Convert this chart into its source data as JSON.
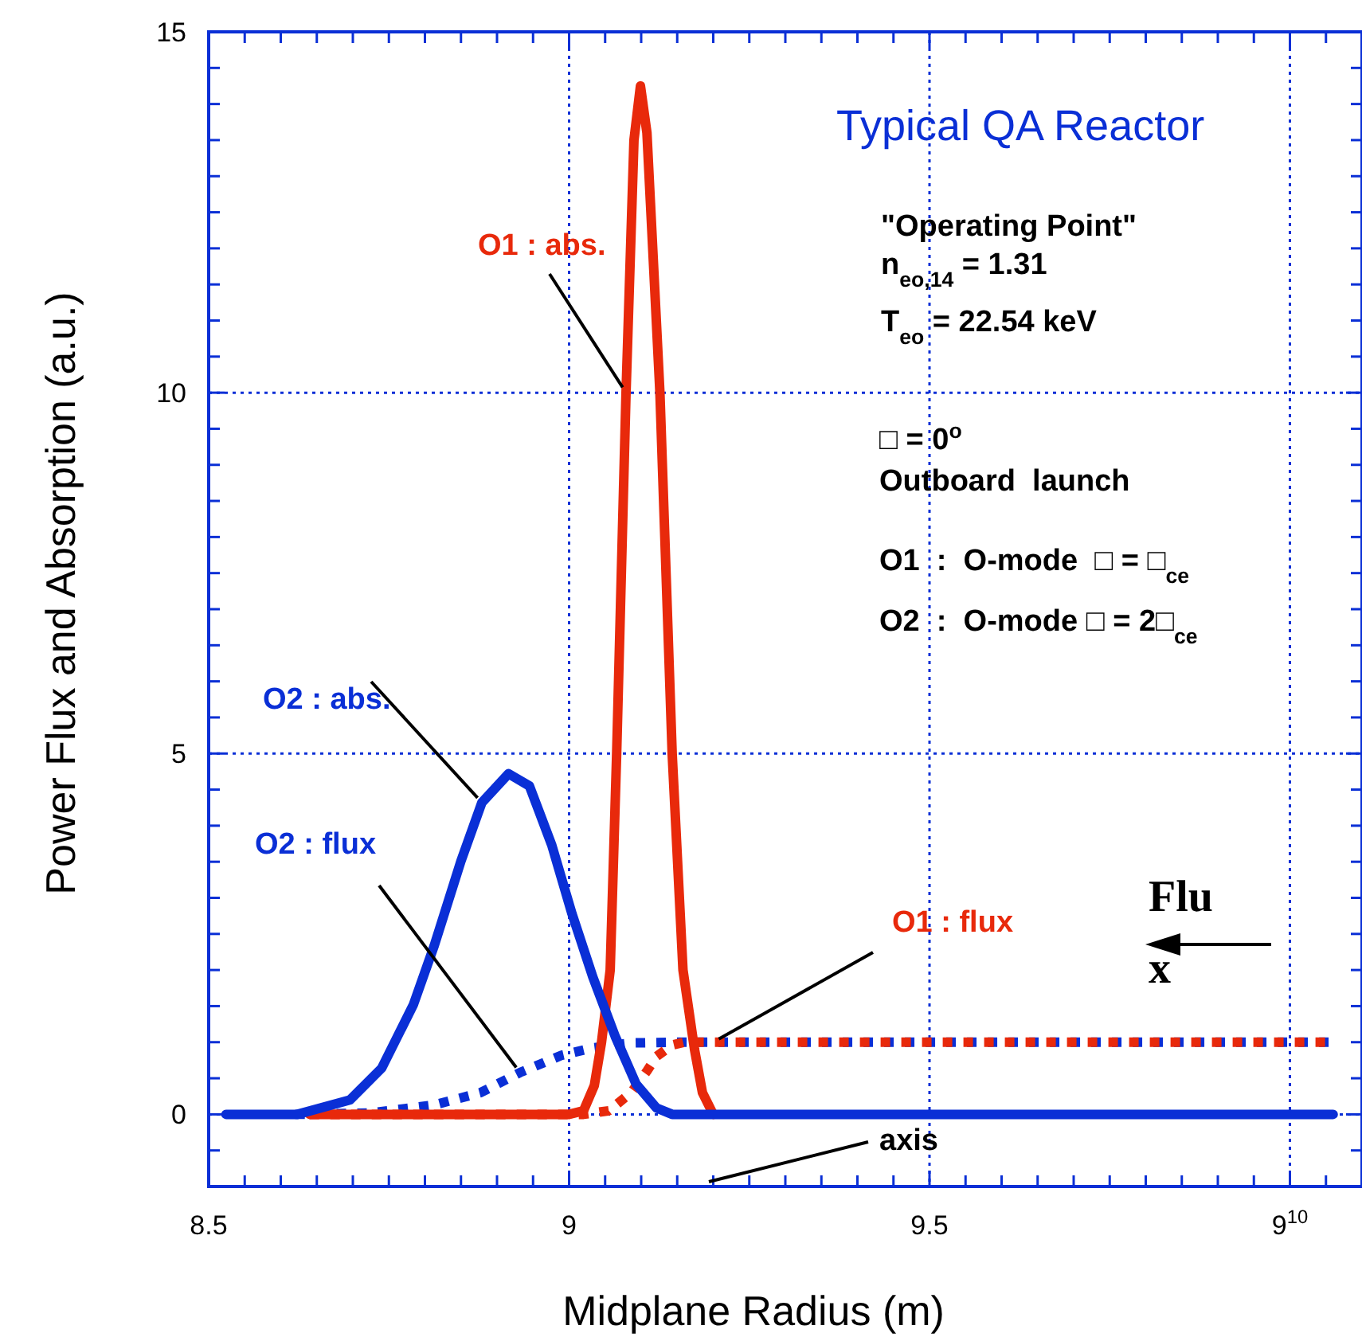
{
  "chart_data": {
    "type": "line",
    "title": "Typical QA Reactor",
    "xlabel": "Midplane Radius (m)",
    "ylabel": "Power Flux and Absorption (a.u.)",
    "xlim": [
      8.5,
      10.1
    ],
    "ylim": [
      -1,
      15
    ],
    "xticks": [
      8.5,
      {
        "value": 8.55,
        "label": null
      },
      {
        "value": 8.6,
        "label": null
      },
      {
        "value": 8.65,
        "label": null
      },
      {
        "value": 8.7,
        "label": null
      },
      {
        "value": 8.75,
        "label": null
      },
      {
        "value": 8.8,
        "label": null
      },
      {
        "value": 8.85,
        "label": null
      },
      {
        "value": 8.9,
        "label": null
      },
      {
        "value": 8.95,
        "label": null
      },
      9,
      {
        "value": 9.05,
        "label": null
      },
      {
        "value": 9.1,
        "label": null
      },
      {
        "value": 9.15,
        "label": null
      },
      {
        "value": 9.2,
        "label": null
      },
      {
        "value": 9.25,
        "label": null
      },
      {
        "value": 9.3,
        "label": null
      },
      {
        "value": 9.35,
        "label": null
      },
      {
        "value": 9.4,
        "label": null
      },
      {
        "value": 9.45,
        "label": null
      },
      9.5,
      {
        "value": 9.55,
        "label": null
      },
      {
        "value": 9.6,
        "label": null
      },
      {
        "value": 9.65,
        "label": null
      },
      {
        "value": 9.7,
        "label": null
      },
      {
        "value": 9.75,
        "label": null
      },
      {
        "value": 9.8,
        "label": null
      },
      {
        "value": 9.85,
        "label": null
      },
      {
        "value": 9.9,
        "label": null
      },
      {
        "value": 9.95,
        "label": null
      },
      {
        "value": 10,
        "label": "9$^{10}$"
      },
      {
        "value": 10.05,
        "label": null
      }
    ],
    "yticks": [
      {
        "value": -0.5,
        "label": null
      },
      0,
      {
        "value": 0.5,
        "label": null
      },
      {
        "value": 1,
        "label": null
      },
      {
        "value": 1.5,
        "label": null
      },
      {
        "value": 2,
        "label": null
      },
      {
        "value": 2.5,
        "label": null
      },
      {
        "value": 3,
        "label": null
      },
      {
        "value": 3.5,
        "label": null
      },
      {
        "value": 4,
        "label": null
      },
      {
        "value": 4.5,
        "label": null
      },
      5,
      {
        "value": 5.5,
        "label": null
      },
      {
        "value": 6,
        "label": null
      },
      {
        "value": 6.5,
        "label": null
      },
      {
        "value": 7,
        "label": null
      },
      {
        "value": 7.5,
        "label": null
      },
      {
        "value": 8,
        "label": null
      },
      {
        "value": 8.5,
        "label": null
      },
      {
        "value": 9,
        "label": null
      },
      {
        "value": 9.5,
        "label": null
      },
      10,
      {
        "value": 10.5,
        "label": null
      },
      {
        "value": 11,
        "label": null
      },
      {
        "value": 11.5,
        "label": null
      },
      {
        "value": 12,
        "label": null
      },
      {
        "value": 12.5,
        "label": null
      },
      {
        "value": 13,
        "label": null
      },
      {
        "value": 13.5,
        "label": null
      },
      {
        "value": 14,
        "label": null
      },
      {
        "value": 14.5,
        "label": null
      },
      15
    ],
    "grid": true,
    "marker": "none",
    "series": [
      {
        "name": "O2 : flux",
        "color": "#0a2fd6",
        "line_style": "dotted",
        "x": [
          8.62,
          8.725,
          8.813,
          8.877,
          8.932,
          8.99,
          9.033,
          9.086,
          9.15,
          10.06
        ],
        "values": [
          0,
          0.02,
          0.13,
          0.3,
          0.58,
          0.82,
          0.92,
          0.99,
          1,
          1
        ]
      },
      {
        "name": "O1 : flux",
        "color": "#e8290b",
        "line_style": "dotted",
        "x": [
          8.64,
          9.02,
          9.055,
          9.086,
          9.108,
          9.121,
          9.143,
          9.16,
          9.2,
          10.06
        ],
        "values": [
          0,
          0,
          0.05,
          0.3,
          0.6,
          0.8,
          0.96,
          1,
          1,
          1
        ]
      },
      {
        "name": "O1 : abs.",
        "color": "#e8290b",
        "line_style": "solid",
        "x": [
          8.64,
          9.0,
          9.02,
          9.035,
          9.045,
          9.057,
          9.066,
          9.079,
          9.09,
          9.099,
          9.108,
          9.126,
          9.143,
          9.158,
          9.174,
          9.185,
          9.2
        ],
        "values": [
          0,
          0,
          0.05,
          0.4,
          1,
          2,
          5,
          10,
          13.5,
          14.25,
          13.6,
          10,
          5,
          2,
          0.9,
          0.3,
          0
        ]
      },
      {
        "name": "O2 : abs.",
        "color": "#0a2fd6",
        "line_style": "solid",
        "x": [
          8.524,
          8.623,
          8.696,
          8.74,
          8.784,
          8.813,
          8.85,
          8.879,
          8.916,
          8.945,
          8.976,
          9.004,
          9.033,
          9.064,
          9.093,
          9.121,
          9.143,
          10.06
        ],
        "values": [
          0,
          0,
          0.2,
          0.64,
          1.52,
          2.34,
          3.51,
          4.32,
          4.72,
          4.55,
          3.73,
          2.78,
          1.9,
          1.08,
          0.42,
          0.09,
          0,
          0
        ]
      }
    ],
    "annotations": [
      "\"Operating Point\"",
      "n$_{eo,14}$ = 1.31",
      "T$_{eo}$ = 22.54 keV",
      "□ = 0$^{o}$",
      "Outboard  launch",
      "O1  :  O-mode  □ = □$_{ce}$",
      "O2  :  O-mode □ = 2□$_{ce}$",
      "Flu",
      "x",
      "axis"
    ]
  }
}
